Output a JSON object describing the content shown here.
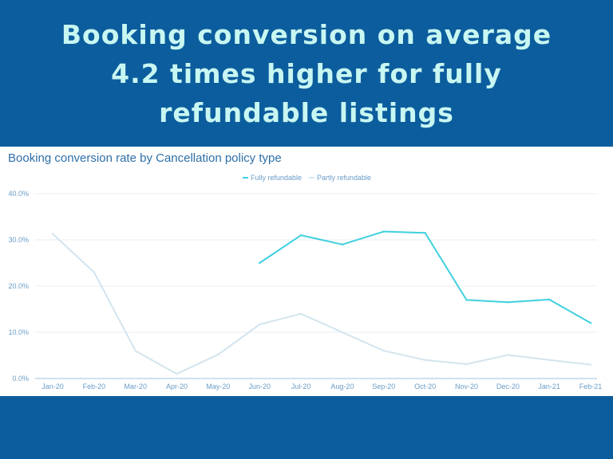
{
  "headline": "Booking conversion on average 4.2 times higher for fully refundable listings",
  "colors": {
    "background": "#0c5d9d",
    "headline_text": "#c8f7f2",
    "fully_refundable": "#3fd0de",
    "partly_refundable": "#d3e4ee"
  },
  "chart_data": {
    "type": "line",
    "title": "Booking conversion rate by Cancellation policy type",
    "xlabel": "",
    "ylabel": "",
    "categories": [
      "Jan-20",
      "Feb-20",
      "Mar-20",
      "Apr-20",
      "May-20",
      "Jun-20",
      "Jul-20",
      "Aug-20",
      "Sep-20",
      "Oct-20",
      "Nov-20",
      "Dec-20",
      "Jan-21",
      "Feb-21"
    ],
    "yticks": [
      "0.0%",
      "10.0%",
      "20.0%",
      "30.0%",
      "40.0%"
    ],
    "ylim": [
      0,
      40
    ],
    "grid": true,
    "legend_position": "top-center",
    "series": [
      {
        "name": "Fully refundable",
        "values": [
          null,
          null,
          null,
          null,
          null,
          25.0,
          31.0,
          29.0,
          31.8,
          31.5,
          17.0,
          16.5,
          17.1,
          12.0
        ]
      },
      {
        "name": "Partly refundable",
        "values": [
          31.3,
          23.0,
          6.0,
          1.0,
          5.2,
          11.7,
          14.0,
          10.0,
          6.0,
          4.0,
          3.1,
          5.1,
          4.0,
          3.0
        ]
      }
    ]
  }
}
